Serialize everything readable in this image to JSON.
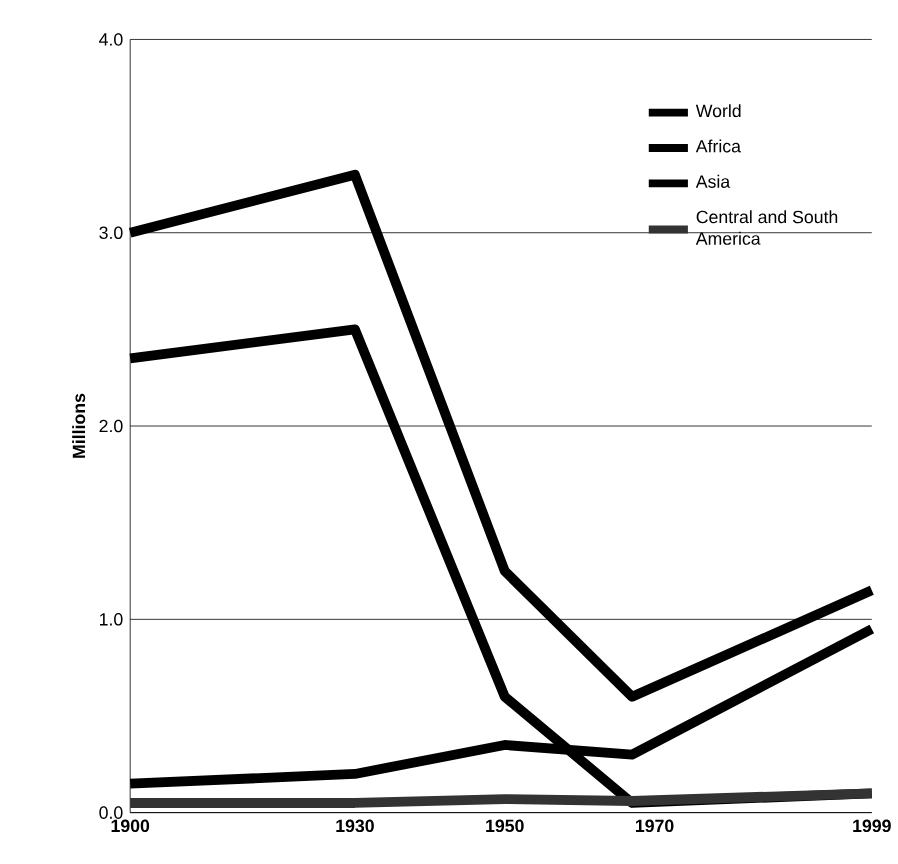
{
  "chart_data": {
    "type": "line",
    "ylabel": "Millions",
    "x": [
      1900,
      1930,
      1950,
      1967,
      1999
    ],
    "series": [
      {
        "name": "World",
        "color": "#000000",
        "values": [
          3.0,
          3.3,
          1.25,
          0.6,
          1.15
        ]
      },
      {
        "name": "Africa",
        "color": "#000000",
        "values": [
          2.35,
          2.5,
          0.6,
          0.05,
          0.1
        ]
      },
      {
        "name": "Asia",
        "color": "#000000",
        "values": [
          0.15,
          0.2,
          0.35,
          0.3,
          0.95
        ]
      },
      {
        "name": "Central and South America",
        "color": "#333333",
        "values": [
          0.05,
          0.05,
          0.07,
          0.06,
          0.1
        ]
      }
    ],
    "xlim": [
      1900,
      1999
    ],
    "xticks": [
      1900,
      1930,
      1950,
      1970,
      1999
    ],
    "ylim": [
      0,
      4
    ],
    "yticks": [
      {
        "value": 0,
        "label": "0.0"
      },
      {
        "value": 1,
        "label": "1.0"
      },
      {
        "value": 2,
        "label": "2.0"
      },
      {
        "value": 3,
        "label": "3.0"
      },
      {
        "value": 4,
        "label": "4.0"
      }
    ],
    "grid": "y",
    "legend": "top right",
    "marker": "none",
    "line_style": "solid"
  }
}
